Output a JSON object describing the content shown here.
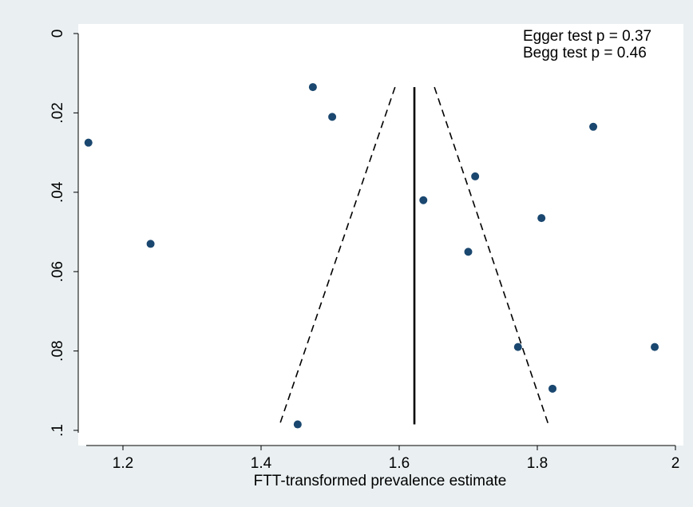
{
  "chart_data": {
    "type": "scatter",
    "title": "",
    "xlabel": "FTT-transformed prevalence estimate",
    "ylabel": "",
    "xlim": [
      1.13,
      2.0
    ],
    "ylim": [
      0,
      0.1
    ],
    "y_reversed": true,
    "x_ticks": [
      1.2,
      1.4,
      1.6,
      1.8,
      2
    ],
    "x_tick_labels": [
      "1.2",
      "1.4",
      "1.6",
      "1.8",
      "2"
    ],
    "y_ticks": [
      0,
      0.02,
      0.04,
      0.06,
      0.08,
      0.1
    ],
    "y_tick_labels": [
      "0",
      ".02",
      ".04",
      ".06",
      ".08",
      ".1"
    ],
    "grid": false,
    "annotations": [
      "Egger test p = 0.37",
      "Begg test p = 0.46"
    ],
    "series": [
      {
        "type": "scatter",
        "x": [
          1.15,
          1.24,
          1.453,
          1.475,
          1.503,
          1.635,
          1.7,
          1.71,
          1.772,
          1.806,
          1.822,
          1.881,
          1.97
        ],
        "y": [
          0.0275,
          0.053,
          0.0985,
          0.0135,
          0.021,
          0.042,
          0.055,
          0.036,
          0.079,
          0.0465,
          0.0895,
          0.0235,
          0.079
        ]
      },
      {
        "type": "line",
        "style": "solid",
        "x": [
          1.622,
          1.622
        ],
        "y": [
          0.0135,
          0.0985
        ]
      },
      {
        "type": "line",
        "style": "dashed",
        "x": [
          1.594,
          1.427
        ],
        "y": [
          0.0135,
          0.0985
        ]
      },
      {
        "type": "line",
        "style": "dashed",
        "x": [
          1.651,
          1.816
        ],
        "y": [
          0.0135,
          0.0985
        ]
      }
    ],
    "colors": {
      "points": "#1a476f",
      "background": "#eaf0f2",
      "plot_bg": "#ffffff"
    }
  }
}
